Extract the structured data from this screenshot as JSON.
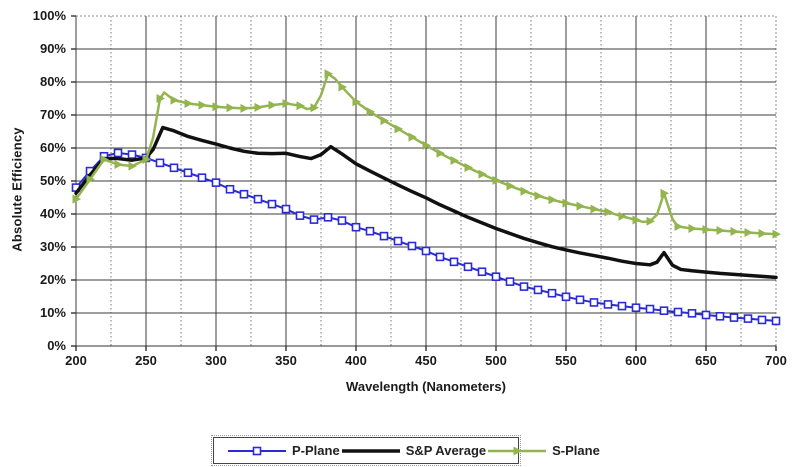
{
  "chart_data": {
    "type": "line",
    "title": "",
    "xlabel": "Wavelength (Nanometers)",
    "ylabel": "Absolute Efficiency",
    "x_range": [
      200,
      700
    ],
    "y_range": [
      0,
      100
    ],
    "y_unit": "%",
    "x_major_ticks": [
      200,
      250,
      300,
      350,
      400,
      450,
      500,
      550,
      600,
      650,
      700
    ],
    "x_tick_labels": [
      "200",
      "250",
      "300",
      "350",
      "400",
      "450",
      "500",
      "550",
      "600",
      "650",
      "700"
    ],
    "x_minor_ticks": [
      225,
      275,
      325,
      375,
      425,
      475,
      525,
      575,
      625,
      675
    ],
    "y_major_ticks": [
      0,
      10,
      20,
      30,
      40,
      50,
      60,
      70,
      80,
      90,
      100
    ],
    "y_tick_labels": [
      "0%",
      "10%",
      "20%",
      "30%",
      "40%",
      "50%",
      "60%",
      "70%",
      "80%",
      "90%",
      "100%"
    ],
    "grid": {
      "major_color": "#3d3d3d",
      "minor_color": "#777777",
      "border_dotted_color": "#888888",
      "axis_color": "#333333"
    },
    "legend_position": "bottom-center",
    "series": [
      {
        "name": "P-Plane",
        "color": "#2b2bd5",
        "marker": "square-open",
        "marker_interval_nm": 10,
        "line_width": 2,
        "points": [
          [
            200,
            48
          ],
          [
            210,
            53
          ],
          [
            220,
            57.5
          ],
          [
            225,
            58
          ],
          [
            230,
            58.5
          ],
          [
            240,
            58
          ],
          [
            250,
            57
          ],
          [
            260,
            55.5
          ],
          [
            270,
            54
          ],
          [
            280,
            52.5
          ],
          [
            290,
            51
          ],
          [
            300,
            49.5
          ],
          [
            310,
            47.5
          ],
          [
            320,
            46
          ],
          [
            330,
            44.5
          ],
          [
            340,
            43
          ],
          [
            350,
            41.5
          ],
          [
            360,
            39.5
          ],
          [
            370,
            38.3
          ],
          [
            380,
            39
          ],
          [
            390,
            38
          ],
          [
            400,
            36
          ],
          [
            410,
            34.8
          ],
          [
            420,
            33.3
          ],
          [
            430,
            31.8
          ],
          [
            440,
            30.3
          ],
          [
            450,
            28.8
          ],
          [
            460,
            27
          ],
          [
            470,
            25.5
          ],
          [
            480,
            24
          ],
          [
            490,
            22.5
          ],
          [
            500,
            21
          ],
          [
            510,
            19.5
          ],
          [
            520,
            18
          ],
          [
            530,
            17
          ],
          [
            540,
            16
          ],
          [
            550,
            14.9
          ],
          [
            560,
            14
          ],
          [
            570,
            13.2
          ],
          [
            580,
            12.6
          ],
          [
            590,
            12.1
          ],
          [
            600,
            11.6
          ],
          [
            610,
            11.2
          ],
          [
            620,
            10.7
          ],
          [
            630,
            10.3
          ],
          [
            640,
            9.9
          ],
          [
            650,
            9.4
          ],
          [
            660,
            9
          ],
          [
            670,
            8.6
          ],
          [
            680,
            8.3
          ],
          [
            690,
            7.9
          ],
          [
            700,
            7.6
          ]
        ]
      },
      {
        "name": "S&P Average",
        "color": "#111111",
        "marker": "none",
        "marker_interval_nm": 0,
        "line_width": 3.5,
        "points": [
          [
            200,
            46.3
          ],
          [
            210,
            51.8
          ],
          [
            220,
            56.8
          ],
          [
            230,
            56.8
          ],
          [
            240,
            56.3
          ],
          [
            250,
            57
          ],
          [
            255,
            59.5
          ],
          [
            262,
            66.2
          ],
          [
            270,
            65.2
          ],
          [
            280,
            63.5
          ],
          [
            290,
            62.3
          ],
          [
            300,
            61.2
          ],
          [
            310,
            60
          ],
          [
            320,
            59
          ],
          [
            330,
            58.4
          ],
          [
            340,
            58.3
          ],
          [
            350,
            58.4
          ],
          [
            360,
            57.4
          ],
          [
            368,
            56.8
          ],
          [
            375,
            58
          ],
          [
            382,
            60.4
          ],
          [
            390,
            58.2
          ],
          [
            400,
            55.2
          ],
          [
            410,
            53
          ],
          [
            420,
            50.9
          ],
          [
            430,
            48.8
          ],
          [
            440,
            46.8
          ],
          [
            450,
            44.9
          ],
          [
            460,
            42.8
          ],
          [
            470,
            40.9
          ],
          [
            480,
            39
          ],
          [
            490,
            37.3
          ],
          [
            500,
            35.6
          ],
          [
            510,
            34.1
          ],
          [
            520,
            32.6
          ],
          [
            530,
            31.3
          ],
          [
            540,
            30.1
          ],
          [
            550,
            29.1
          ],
          [
            560,
            28.2
          ],
          [
            570,
            27.4
          ],
          [
            580,
            26.6
          ],
          [
            590,
            25.7
          ],
          [
            600,
            25
          ],
          [
            610,
            24.6
          ],
          [
            615,
            25.4
          ],
          [
            620,
            28.3
          ],
          [
            626,
            24.5
          ],
          [
            632,
            23.2
          ],
          [
            640,
            22.8
          ],
          [
            650,
            22.4
          ],
          [
            660,
            22
          ],
          [
            670,
            21.7
          ],
          [
            680,
            21.4
          ],
          [
            690,
            21.1
          ],
          [
            700,
            20.8
          ]
        ]
      },
      {
        "name": "S-Plane",
        "color": "#93b44f",
        "marker": "triangle",
        "marker_interval_nm": 10,
        "line_width": 2.5,
        "points": [
          [
            200,
            44.5
          ],
          [
            210,
            50.5
          ],
          [
            220,
            56.5
          ],
          [
            230,
            55
          ],
          [
            240,
            54.5
          ],
          [
            250,
            56.5
          ],
          [
            255,
            63
          ],
          [
            260,
            75
          ],
          [
            263,
            76.8
          ],
          [
            270,
            74.5
          ],
          [
            280,
            73.5
          ],
          [
            290,
            73
          ],
          [
            300,
            72.5
          ],
          [
            310,
            72.2
          ],
          [
            320,
            72
          ],
          [
            330,
            72.3
          ],
          [
            340,
            73
          ],
          [
            350,
            73.5
          ],
          [
            360,
            72.8
          ],
          [
            365,
            71.8
          ],
          [
            370,
            72.2
          ],
          [
            375,
            76
          ],
          [
            380,
            82.5
          ],
          [
            385,
            81
          ],
          [
            390,
            78.5
          ],
          [
            400,
            74
          ],
          [
            410,
            71
          ],
          [
            420,
            68.3
          ],
          [
            430,
            65.8
          ],
          [
            440,
            63.3
          ],
          [
            450,
            60.8
          ],
          [
            460,
            58.4
          ],
          [
            470,
            56.2
          ],
          [
            480,
            54.1
          ],
          [
            490,
            52.1
          ],
          [
            500,
            50.2
          ],
          [
            510,
            48.5
          ],
          [
            520,
            46.9
          ],
          [
            530,
            45.5
          ],
          [
            540,
            44.3
          ],
          [
            550,
            43.3
          ],
          [
            560,
            42.4
          ],
          [
            570,
            41.5
          ],
          [
            580,
            40.6
          ],
          [
            590,
            39.3
          ],
          [
            600,
            38.2
          ],
          [
            605,
            37.6
          ],
          [
            610,
            37.8
          ],
          [
            615,
            39.8
          ],
          [
            620,
            46.3
          ],
          [
            626,
            38.5
          ],
          [
            630,
            36.2
          ],
          [
            640,
            35.6
          ],
          [
            650,
            35.3
          ],
          [
            660,
            35
          ],
          [
            670,
            34.7
          ],
          [
            680,
            34.4
          ],
          [
            690,
            34.1
          ],
          [
            700,
            33.9
          ]
        ]
      }
    ]
  }
}
